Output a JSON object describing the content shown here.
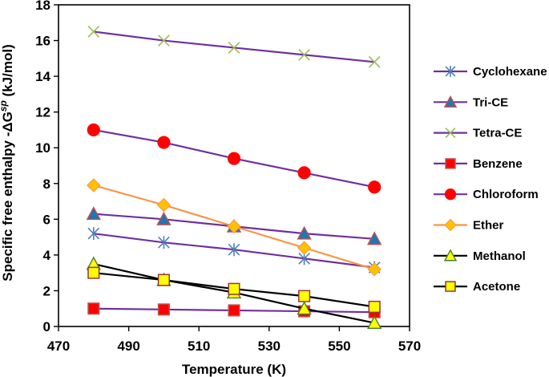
{
  "chart_data": {
    "type": "line",
    "title": "",
    "xlabel": "Temperature (K)",
    "ylabel_prefix": "Specific free enthalpy -ΔG",
    "ylabel_sup": "sp",
    "ylabel_suffix": " (kJ/mol)",
    "xlim": [
      470,
      570
    ],
    "ylim": [
      0,
      18
    ],
    "xticks": [
      470,
      490,
      510,
      530,
      550,
      570
    ],
    "yticks": [
      0,
      2,
      4,
      6,
      8,
      10,
      12,
      14,
      16,
      18
    ],
    "x": [
      480,
      500,
      520,
      540,
      560
    ],
    "legend_position": "right",
    "series": [
      {
        "name": "Cyclohexane",
        "values": [
          5.2,
          4.7,
          4.3,
          3.8,
          3.3
        ],
        "line_color": "#7030A0",
        "marker": "asterisk",
        "marker_fill": "#4F81BD",
        "marker_stroke": "#4F81BD"
      },
      {
        "name": "Tri-CE",
        "values": [
          6.3,
          6.0,
          5.6,
          5.2,
          4.9
        ],
        "line_color": "#7030A0",
        "marker": "triangle",
        "marker_fill": "#1F77B4",
        "marker_stroke": "#C0504D"
      },
      {
        "name": "Tetra-CE",
        "values": [
          16.5,
          16.0,
          15.6,
          15.2,
          14.8
        ],
        "line_color": "#7030A0",
        "marker": "x",
        "marker_fill": "#9BBB59",
        "marker_stroke": "#9BBB59"
      },
      {
        "name": "Benzene",
        "values": [
          1.0,
          0.95,
          0.9,
          0.85,
          0.8
        ],
        "line_color": "#7030A0",
        "marker": "square",
        "marker_fill": "#FF0000",
        "marker_stroke": "#C0504D"
      },
      {
        "name": "Chloroform",
        "values": [
          11.0,
          10.3,
          9.4,
          8.6,
          7.8
        ],
        "line_color": "#7030A0",
        "marker": "circle",
        "marker_fill": "#FF0000",
        "marker_stroke": "#FF0000"
      },
      {
        "name": "Ether",
        "values": [
          7.9,
          6.8,
          5.6,
          4.4,
          3.2
        ],
        "line_color": "#F79646",
        "marker": "diamond",
        "marker_fill": "#FFC000",
        "marker_stroke": "#F79646"
      },
      {
        "name": "Methanol",
        "values": [
          3.5,
          2.6,
          1.9,
          1.0,
          0.2
        ],
        "line_color": "#000000",
        "marker": "triangle",
        "marker_fill": "#FFFF00",
        "marker_stroke": "#4A7F2A"
      },
      {
        "name": "Acetone",
        "values": [
          3.0,
          2.6,
          2.1,
          1.7,
          1.1
        ],
        "line_color": "#000000",
        "marker": "square",
        "marker_fill": "#FFFF00",
        "marker_stroke": "#953735"
      }
    ]
  }
}
